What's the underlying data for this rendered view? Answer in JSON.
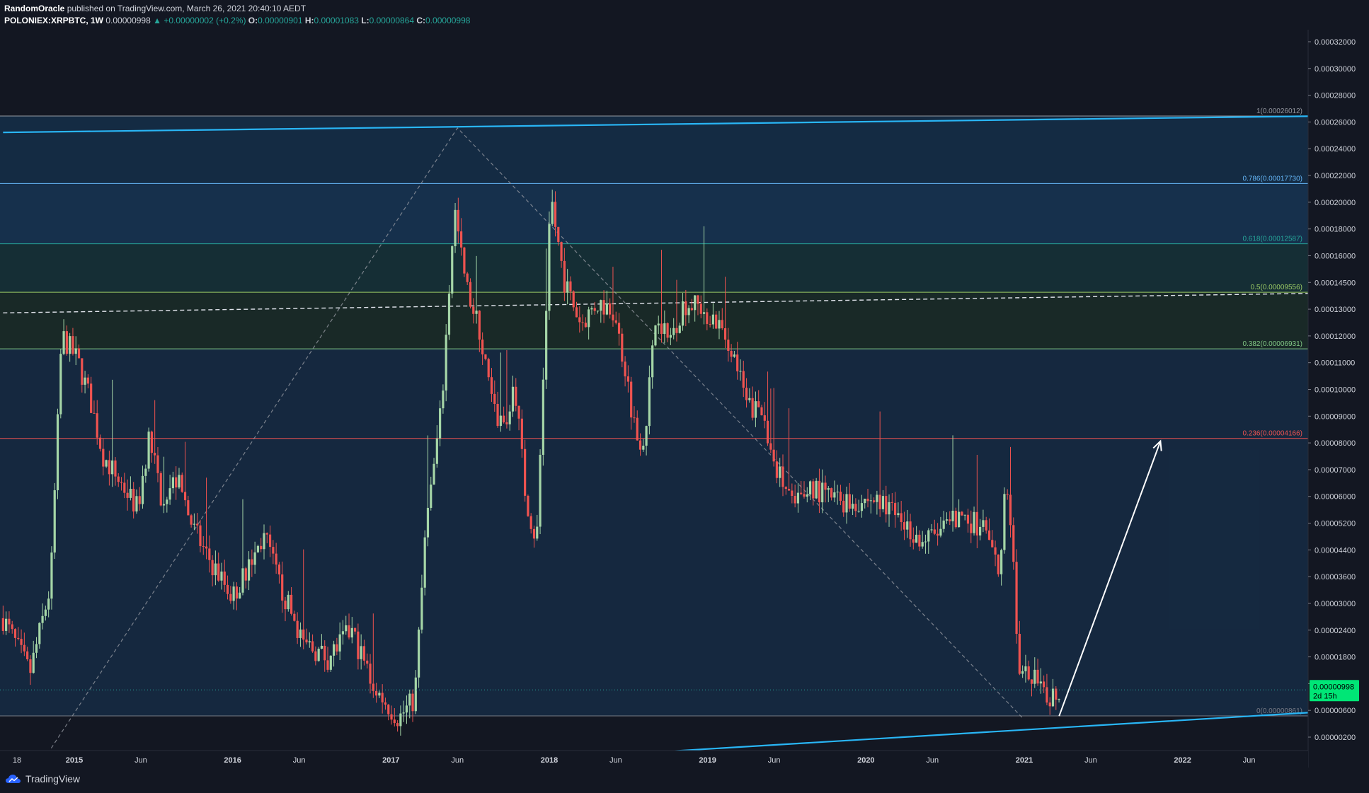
{
  "header": {
    "author": "RandomOracle",
    "published_text": "published on TradingView.com, March 26, 2021 20:40:10 AEDT",
    "symbol": "POLONIEX:XRPBTC, 1W",
    "last_price": "0.00000998",
    "change": "+0.00000002 (+0.2%)",
    "open_label": "O:",
    "open": "0.00000901",
    "high_label": "H:",
    "high": "0.00001083",
    "low_label": "L:",
    "low": "0.00000864",
    "close_label": "C:",
    "close": "0.00000998"
  },
  "footer": {
    "brand": "TradingView"
  },
  "colors": {
    "background": "#131722",
    "up": "#a5d6a7",
    "down": "#ef5350",
    "channel": "#29b6f6",
    "price_badge": "#00e676"
  },
  "chart_data": {
    "type": "candlestick",
    "scale": "log",
    "y_ticks": [
      "0.00032000",
      "0.00030000",
      "0.00028000",
      "0.00026000",
      "0.00024000",
      "0.00022000",
      "0.00020000",
      "0.00018000",
      "0.00016000",
      "0.00014500",
      "0.00013000",
      "0.00012000",
      "0.00011000",
      "0.00010000",
      "0.00009000",
      "0.00008000",
      "0.00007000",
      "0.00006000",
      "0.00005200",
      "0.00004400",
      "0.00003600",
      "0.00003000",
      "0.00002400",
      "0.00001800",
      "0.00001200",
      "0.00000600",
      "0.00000200"
    ],
    "x_ticks": [
      {
        "label": "18",
        "t": 2014.79,
        "bold": false
      },
      {
        "label": "2015",
        "t": 2015.0,
        "bold": true
      },
      {
        "label": "Jun",
        "t": 2015.42,
        "bold": false
      },
      {
        "label": "2016",
        "t": 2016.0,
        "bold": true
      },
      {
        "label": "Jun",
        "t": 2016.42,
        "bold": false
      },
      {
        "label": "2017",
        "t": 2017.0,
        "bold": true
      },
      {
        "label": "Jun",
        "t": 2017.42,
        "bold": false
      },
      {
        "label": "2018",
        "t": 2018.0,
        "bold": true
      },
      {
        "label": "Jun",
        "t": 2018.42,
        "bold": false
      },
      {
        "label": "2019",
        "t": 2019.0,
        "bold": true
      },
      {
        "label": "Jun",
        "t": 2019.42,
        "bold": false
      },
      {
        "label": "2020",
        "t": 2020.0,
        "bold": true
      },
      {
        "label": "Jun",
        "t": 2020.42,
        "bold": false
      },
      {
        "label": "2021",
        "t": 2021.0,
        "bold": true
      },
      {
        "label": "Jun",
        "t": 2021.42,
        "bold": false
      },
      {
        "label": "2022",
        "t": 2022.0,
        "bold": true
      },
      {
        "label": "Jun",
        "t": 2022.42,
        "bold": false
      }
    ],
    "fib_levels": [
      {
        "ratio": "1",
        "label": "1(0.00026012)",
        "value": 0.00026012,
        "color": "#9598a1",
        "zone": "rgba(0,0,0,0)"
      },
      {
        "ratio": "0.786",
        "label": "0.786(0.00017730)",
        "value": 0.0001773,
        "color": "#64b5f6",
        "zone": "rgba(33,150,243,0.16)"
      },
      {
        "ratio": "0.618",
        "label": "0.618(0.00012587)",
        "value": 0.00012587,
        "color": "#26a69a",
        "zone": "rgba(33,150,243,0.2)"
      },
      {
        "ratio": "0.5",
        "label": "0.5(0.00009556)",
        "value": 9.556e-05,
        "color": "#9ccc65",
        "zone": "rgba(38,166,154,0.16)"
      },
      {
        "ratio": "0.382",
        "label": "0.382(0.00006931)",
        "value": 6.931e-05,
        "color": "#81c784",
        "zone": "rgba(76,175,80,0.12)"
      },
      {
        "ratio": "0.236",
        "label": "0.236(0.00004166)",
        "value": 4.166e-05,
        "color": "#ef5350",
        "zone": "rgba(33,150,243,0.14)"
      },
      {
        "ratio": "0",
        "label": "0(0.00000861)",
        "value": 8.61e-06,
        "color": "#787b86",
        "zone": "rgba(33,150,243,0.14)"
      }
    ],
    "channel_upper": [
      [
        2014.55,
        0.000237
      ],
      [
        2022.85,
        0.00026
      ]
    ],
    "channel_lower": [
      [
        2014.55,
        5.6e-06
      ],
      [
        2022.85,
        8.8e-06
      ]
    ],
    "median_dashed": [
      [
        2014.55,
        8.5e-05
      ],
      [
        2022.85,
        9.5e-05
      ]
    ],
    "fib_trend": [
      [
        2014.7,
        5.8e-06
      ],
      [
        2017.42,
        0.000243
      ],
      [
        2020.99,
        8.5e-06
      ]
    ],
    "projection_arrow": [
      [
        2021.22,
        8.6e-06
      ],
      [
        2021.86,
        4.1e-05
      ]
    ],
    "last_price": {
      "value": 9.98e-06,
      "label": "0.00000998",
      "countdown": "2d 15h"
    },
    "keypoints": [
      [
        2014.55,
        1.5e-05
      ],
      [
        2014.72,
        1.1e-05
      ],
      [
        2014.85,
        1.8e-05
      ],
      [
        2014.92,
        7.5e-05
      ],
      [
        2015.02,
        6.5e-05
      ],
      [
        2015.1,
        5.2e-05
      ],
      [
        2015.18,
        3.8e-05
      ],
      [
        2015.3,
        3.2e-05
      ],
      [
        2015.4,
        2.8e-05
      ],
      [
        2015.47,
        4.2e-05
      ],
      [
        2015.55,
        3e-05
      ],
      [
        2015.65,
        3.3e-05
      ],
      [
        2015.75,
        2.5e-05
      ],
      [
        2015.85,
        2.1e-05
      ],
      [
        2016.0,
        1.7e-05
      ],
      [
        2016.1,
        2e-05
      ],
      [
        2016.2,
        2.4e-05
      ],
      [
        2016.3,
        1.8e-05
      ],
      [
        2016.45,
        1.3e-05
      ],
      [
        2016.6,
        1.2e-05
      ],
      [
        2016.75,
        1.4e-05
      ],
      [
        2016.9,
        1e-05
      ],
      [
        2017.05,
        8.5e-06
      ],
      [
        2017.15,
        9.5e-06
      ],
      [
        2017.22,
        2.5e-05
      ],
      [
        2017.32,
        5e-05
      ],
      [
        2017.4,
        0.000155
      ],
      [
        2017.47,
        0.0001
      ],
      [
        2017.55,
        8e-05
      ],
      [
        2017.65,
        4.8e-05
      ],
      [
        2017.72,
        4.5e-05
      ],
      [
        2017.78,
        5.8e-05
      ],
      [
        2017.85,
        3e-05
      ],
      [
        2017.92,
        2.3e-05
      ],
      [
        2017.97,
        7e-05
      ],
      [
        2018.01,
        0.000165
      ],
      [
        2018.05,
        0.00013
      ],
      [
        2018.1,
        0.0001
      ],
      [
        2018.2,
        8e-05
      ],
      [
        2018.3,
        9e-05
      ],
      [
        2018.4,
        8.8e-05
      ],
      [
        2018.48,
        6.2e-05
      ],
      [
        2018.55,
        4.2e-05
      ],
      [
        2018.6,
        4.2e-05
      ],
      [
        2018.68,
        8.8e-05
      ],
      [
        2018.75,
        7.2e-05
      ],
      [
        2018.85,
        9e-05
      ],
      [
        2018.95,
        8.8e-05
      ],
      [
        2019.05,
        8.2e-05
      ],
      [
        2019.15,
        7e-05
      ],
      [
        2019.25,
        5e-05
      ],
      [
        2019.35,
        4.8e-05
      ],
      [
        2019.45,
        3.4e-05
      ],
      [
        2019.55,
        2.8e-05
      ],
      [
        2019.65,
        3.2e-05
      ],
      [
        2019.75,
        3e-05
      ],
      [
        2019.9,
        2.9e-05
      ],
      [
        2020.05,
        2.95e-05
      ],
      [
        2020.2,
        2.7e-05
      ],
      [
        2020.35,
        2.3e-05
      ],
      [
        2020.5,
        2.5e-05
      ],
      [
        2020.6,
        2.7e-05
      ],
      [
        2020.75,
        2.5e-05
      ],
      [
        2020.85,
        1.9e-05
      ],
      [
        2020.88,
        3.5e-05
      ],
      [
        2020.92,
        2.5e-05
      ],
      [
        2020.97,
        1.05e-05
      ],
      [
        2021.05,
        1.1e-05
      ],
      [
        2021.12,
        9.5e-06
      ],
      [
        2021.23,
        1e-05
      ]
    ]
  }
}
